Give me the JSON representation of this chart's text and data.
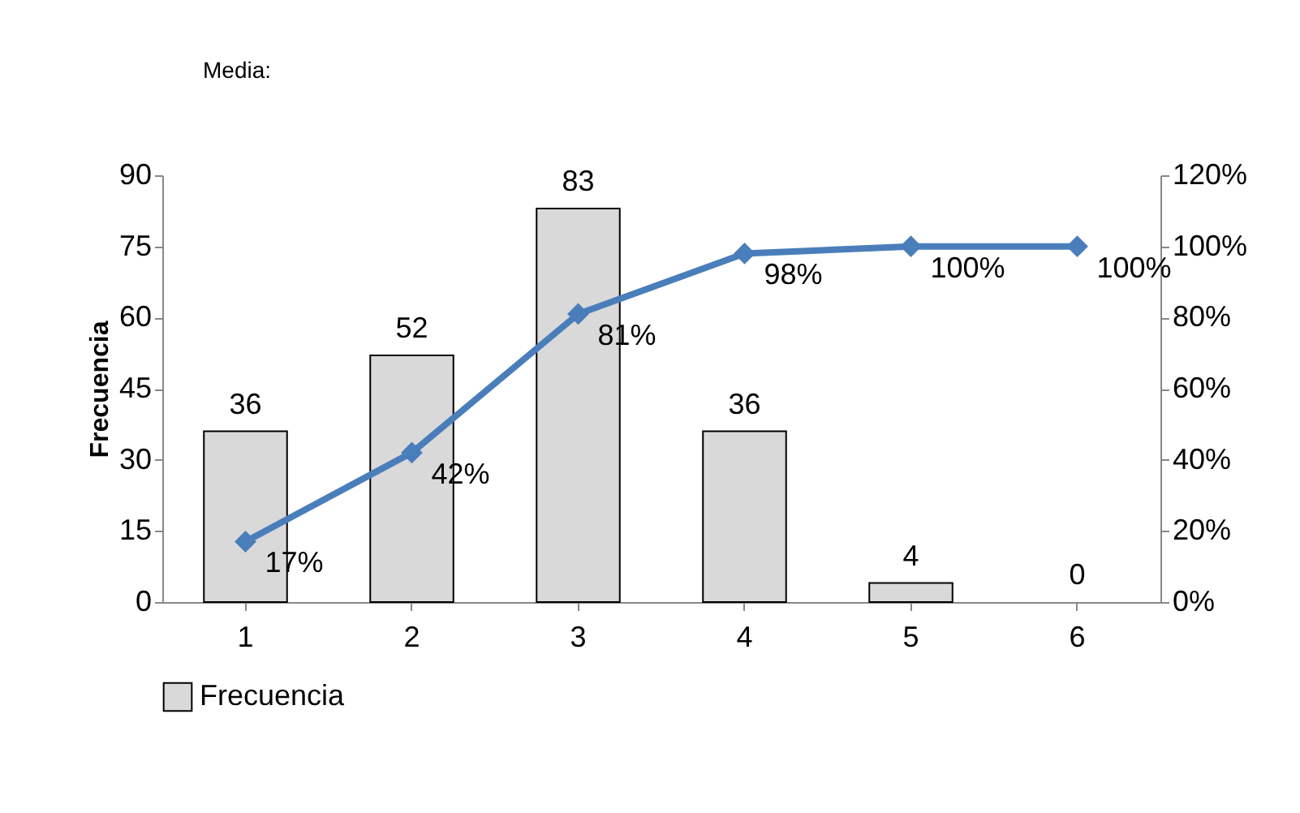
{
  "chart_data": {
    "type": "bar",
    "ylabel": "Frecuencia",
    "annotations": [
      "Media:"
    ],
    "categories": [
      "1",
      "2",
      "3",
      "4",
      "5",
      "6"
    ],
    "series": [
      {
        "name": "Frecuencia",
        "color": "#d9d9d9",
        "values": [
          36,
          52,
          83,
          36,
          4,
          0
        ],
        "value_labels": [
          "36",
          "52",
          "83",
          "36",
          "4",
          "0"
        ]
      },
      {
        "type": "line",
        "axis": "y2",
        "color": "#4a7ebb",
        "marker": "diamond",
        "values": [
          17,
          42,
          81,
          98,
          100,
          100
        ],
        "value_labels": [
          "17%",
          "42%",
          "81%",
          "98%",
          "100%",
          "100%"
        ]
      }
    ],
    "ylim": [
      0,
      90
    ],
    "yticks": [
      0,
      15,
      30,
      45,
      60,
      75,
      90
    ],
    "y2lim": [
      0,
      120
    ],
    "y2ticks": [
      {
        "value": 0,
        "label": "0%"
      },
      {
        "value": 20,
        "label": "20%"
      },
      {
        "value": 40,
        "label": "40%"
      },
      {
        "value": 60,
        "label": "60%"
      },
      {
        "value": 80,
        "label": "80%"
      },
      {
        "value": 100,
        "label": "100%"
      },
      {
        "value": 120,
        "label": "120%"
      }
    ],
    "grid": false,
    "legend": "bottom"
  }
}
